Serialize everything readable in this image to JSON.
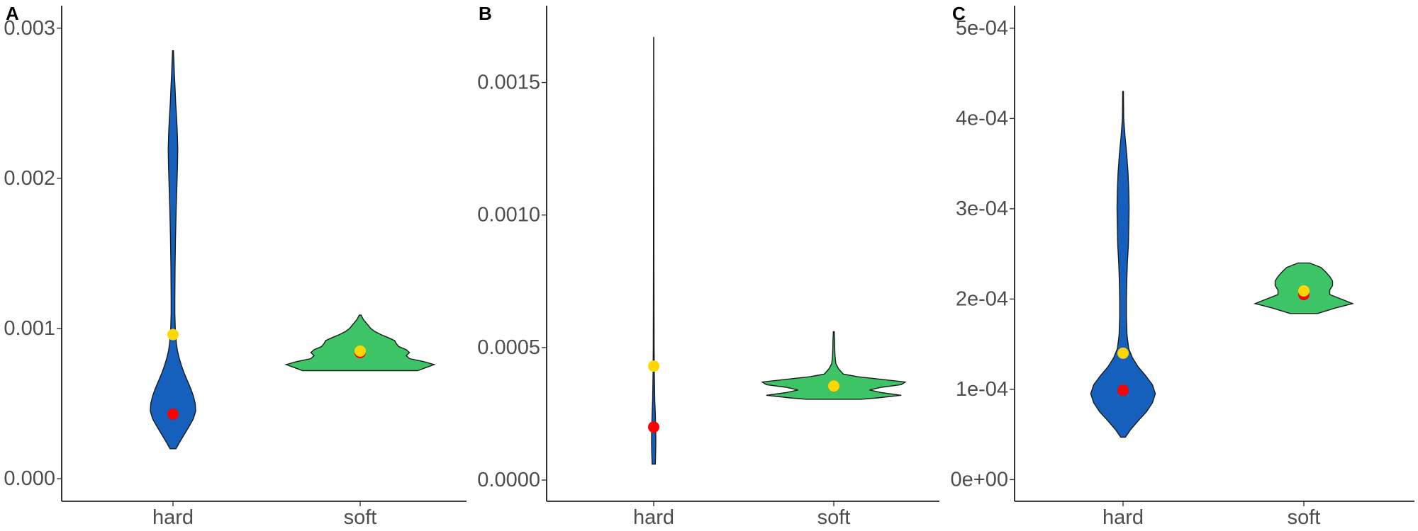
{
  "chart_data": [
    {
      "type": "violin",
      "panel_label": "A",
      "categories": [
        "hard",
        "soft"
      ],
      "colors": {
        "hard": "#1560bd",
        "soft": "#3cc467"
      },
      "mean_color": "#ffd700",
      "median_color": "#ff0000",
      "ylim": [
        -0.00015,
        0.00315
      ],
      "yticks": [
        0.0,
        0.001,
        0.002,
        0.003
      ],
      "ytick_labels": [
        "0.000",
        "0.001",
        "0.002",
        "0.003"
      ],
      "violins": [
        {
          "category": "hard",
          "min": 0.0002,
          "max": 0.00285,
          "profile": [
            [
              0.0002,
              0.13
            ],
            [
              0.00025,
              0.32
            ],
            [
              0.0003,
              0.52
            ],
            [
              0.00035,
              0.72
            ],
            [
              0.0004,
              0.9
            ],
            [
              0.00045,
              1.0
            ],
            [
              0.0005,
              0.98
            ],
            [
              0.00055,
              0.9
            ],
            [
              0.0006,
              0.78
            ],
            [
              0.00065,
              0.64
            ],
            [
              0.0007,
              0.5
            ],
            [
              0.00075,
              0.38
            ],
            [
              0.0008,
              0.28
            ],
            [
              0.00085,
              0.2
            ],
            [
              0.0009,
              0.15
            ],
            [
              0.001,
              0.1
            ],
            [
              0.0011,
              0.08
            ],
            [
              0.0012,
              0.08
            ],
            [
              0.0014,
              0.09
            ],
            [
              0.0016,
              0.11
            ],
            [
              0.0018,
              0.14
            ],
            [
              0.002,
              0.18
            ],
            [
              0.0021,
              0.2
            ],
            [
              0.0022,
              0.21
            ],
            [
              0.0023,
              0.19
            ],
            [
              0.0024,
              0.16
            ],
            [
              0.0025,
              0.12
            ],
            [
              0.0026,
              0.09
            ],
            [
              0.0027,
              0.06
            ],
            [
              0.0028,
              0.035
            ],
            [
              0.00285,
              0.02
            ]
          ],
          "mean": 0.00096,
          "median": 0.00043
        },
        {
          "category": "soft",
          "min": 0.00072,
          "max": 0.00109,
          "profile": [
            [
              0.00072,
              0.7
            ],
            [
              0.00074,
              0.8
            ],
            [
              0.00076,
              0.9
            ],
            [
              0.00078,
              0.77
            ],
            [
              0.0008,
              0.6
            ],
            [
              0.00082,
              0.56
            ],
            [
              0.00084,
              0.6
            ],
            [
              0.00086,
              0.56
            ],
            [
              0.00088,
              0.47
            ],
            [
              0.0009,
              0.44
            ],
            [
              0.00092,
              0.42
            ],
            [
              0.00094,
              0.34
            ],
            [
              0.00096,
              0.25
            ],
            [
              0.00098,
              0.18
            ],
            [
              0.001,
              0.13
            ],
            [
              0.00102,
              0.1
            ],
            [
              0.00104,
              0.07
            ],
            [
              0.00106,
              0.04
            ],
            [
              0.00108,
              0.02
            ],
            [
              0.00109,
              0.01
            ]
          ],
          "mean": 0.00085,
          "median": 0.00084
        }
      ]
    },
    {
      "type": "violin",
      "panel_label": "B",
      "categories": [
        "hard",
        "soft"
      ],
      "colors": {
        "hard": "#1560bd",
        "soft": "#3cc467"
      },
      "mean_color": "#ffd700",
      "median_color": "#ff0000",
      "ylim": [
        -8e-05,
        0.00179
      ],
      "yticks": [
        0.0,
        0.0005,
        0.001,
        0.0015
      ],
      "ytick_labels": [
        "0.0000",
        "0.0005",
        "0.0010",
        "0.0015"
      ],
      "violins": [
        {
          "category": "hard",
          "min": 6e-05,
          "max": 0.00167,
          "profile": [
            [
              6e-05,
              0.15
            ],
            [
              0.0001,
              0.18
            ],
            [
              0.00015,
              0.2
            ],
            [
              0.0002,
              0.18
            ],
            [
              0.00025,
              0.15
            ],
            [
              0.0003,
              0.1
            ],
            [
              0.0004,
              0.06
            ],
            [
              0.0005,
              0.04
            ],
            [
              0.0007,
              0.028
            ],
            [
              0.0009,
              0.022
            ],
            [
              0.0011,
              0.018
            ],
            [
              0.0013,
              0.014
            ],
            [
              0.0015,
              0.01
            ],
            [
              0.00167,
              0.004
            ]
          ],
          "mean": 0.00043,
          "median": 0.0002
        },
        {
          "category": "soft",
          "min": 0.000305,
          "max": 0.00056,
          "profile": [
            [
              0.000305,
              0.35
            ],
            [
              0.00031,
              0.55
            ],
            [
              0.00032,
              0.85
            ],
            [
              0.00033,
              0.6
            ],
            [
              0.00034,
              0.45
            ],
            [
              0.00035,
              0.6
            ],
            [
              0.00036,
              0.85
            ],
            [
              0.00037,
              0.9
            ],
            [
              0.00038,
              0.6
            ],
            [
              0.00039,
              0.3
            ],
            [
              0.0004,
              0.12
            ],
            [
              0.00042,
              0.06
            ],
            [
              0.00044,
              0.025
            ],
            [
              0.00047,
              0.015
            ],
            [
              0.0005,
              0.012
            ],
            [
              0.00053,
              0.01
            ],
            [
              0.00056,
              0.005
            ]
          ],
          "mean": 0.000355,
          "median": 0.000355
        }
      ]
    },
    {
      "type": "violin",
      "panel_label": "C",
      "categories": [
        "hard",
        "soft"
      ],
      "colors": {
        "hard": "#1560bd",
        "soft": "#3cc467"
      },
      "mean_color": "#ffd700",
      "median_color": "#ff0000",
      "ylim": [
        -2.4e-05,
        0.000525
      ],
      "yticks": [
        0,
        0.0001,
        0.0002,
        0.0003,
        0.0004,
        0.0005
      ],
      "ytick_labels": [
        "0e+00",
        "1e-04",
        "2e-04",
        "3e-04",
        "4e-04",
        "5e-04"
      ],
      "violins": [
        {
          "category": "hard",
          "min": 4.7e-05,
          "max": 0.00043,
          "profile": [
            [
              4.7e-05,
              0.07
            ],
            [
              5.5e-05,
              0.22
            ],
            [
              6.5e-05,
              0.45
            ],
            [
              7.5e-05,
              0.7
            ],
            [
              8.5e-05,
              0.88
            ],
            [
              9.5e-05,
              0.97
            ],
            [
              0.000105,
              0.88
            ],
            [
              0.000115,
              0.68
            ],
            [
              0.000125,
              0.45
            ],
            [
              0.000135,
              0.28
            ],
            [
              0.000145,
              0.17
            ],
            [
              0.00016,
              0.12
            ],
            [
              0.00018,
              0.1
            ],
            [
              0.0002,
              0.1
            ],
            [
              0.00022,
              0.11
            ],
            [
              0.00024,
              0.13
            ],
            [
              0.00026,
              0.16
            ],
            [
              0.00028,
              0.17
            ],
            [
              0.0003,
              0.18
            ],
            [
              0.00032,
              0.17
            ],
            [
              0.00034,
              0.15
            ],
            [
              0.00036,
              0.11
            ],
            [
              0.00038,
              0.06
            ],
            [
              0.0004,
              0.02
            ],
            [
              0.00043,
              0.01
            ]
          ],
          "mean": 0.00014,
          "median": 9.9e-05
        },
        {
          "category": "soft",
          "min": 0.000184,
          "max": 0.00024,
          "profile": [
            [
              0.000184,
              0.24
            ],
            [
              0.00019,
              0.55
            ],
            [
              0.000195,
              0.85
            ],
            [
              0.0002,
              0.65
            ],
            [
              0.000205,
              0.45
            ],
            [
              0.00021,
              0.45
            ],
            [
              0.000215,
              0.5
            ],
            [
              0.00022,
              0.5
            ],
            [
              0.000225,
              0.45
            ],
            [
              0.00023,
              0.38
            ],
            [
              0.000235,
              0.3
            ],
            [
              0.00024,
              0.1
            ]
          ],
          "mean": 0.000209,
          "median": 0.000205
        }
      ]
    }
  ]
}
